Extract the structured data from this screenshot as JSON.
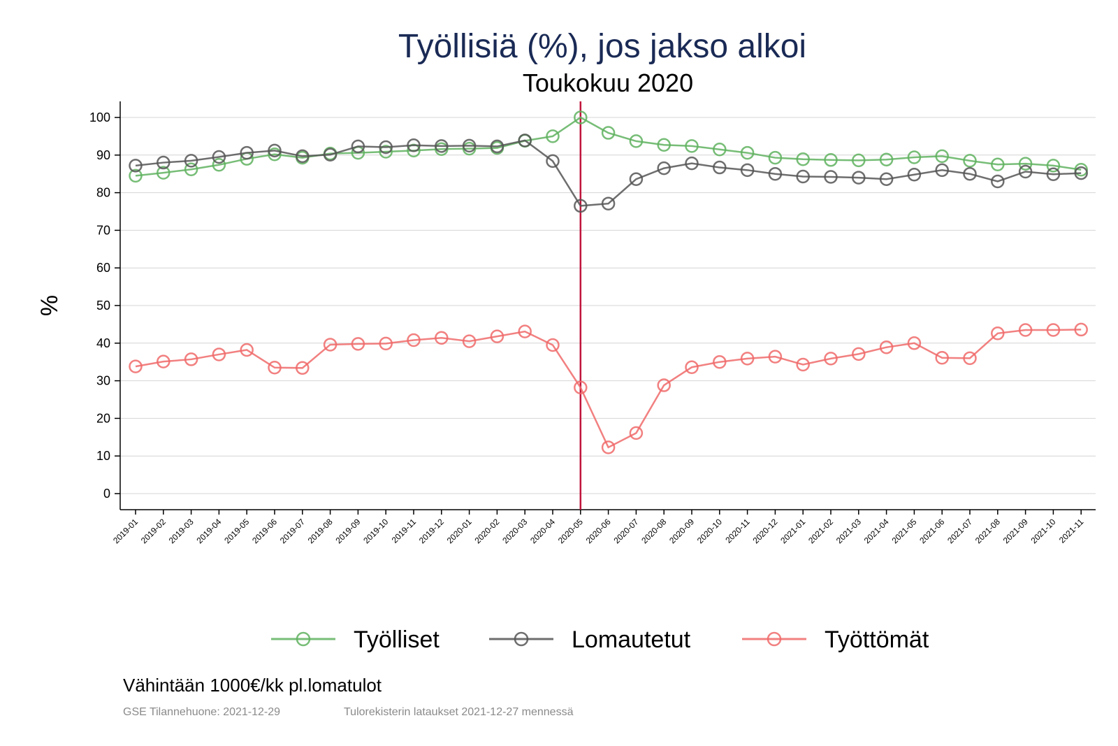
{
  "chart_data": {
    "type": "line",
    "title": "Työllisiä (%), jos jakso alkoi",
    "subtitle": "Toukokuu 2020",
    "ylabel": "%",
    "xlabel": "",
    "ylim": [
      0,
      100
    ],
    "yticks": [
      0,
      10,
      20,
      30,
      40,
      50,
      60,
      70,
      80,
      90,
      100
    ],
    "grid": true,
    "legend_position": "bottom",
    "reference_line": {
      "x": "2020-05",
      "color": "#c0143c"
    },
    "categories": [
      "2019-01",
      "2019-02",
      "2019-03",
      "2019-04",
      "2019-05",
      "2019-06",
      "2019-07",
      "2019-08",
      "2019-09",
      "2019-10",
      "2019-11",
      "2019-12",
      "2020-01",
      "2020-02",
      "2020-03",
      "2020-04",
      "2020-05",
      "2020-06",
      "2020-07",
      "2020-08",
      "2020-09",
      "2020-10",
      "2020-11",
      "2020-12",
      "2021-01",
      "2021-02",
      "2021-03",
      "2021-04",
      "2021-05",
      "2021-06",
      "2021-07",
      "2021-08",
      "2021-09",
      "2021-10",
      "2021-11"
    ],
    "series": [
      {
        "name": "Työlliset",
        "color": "#5fb15f",
        "values": [
          84.5,
          85.3,
          86.2,
          87.4,
          89.0,
          90.2,
          89.3,
          90.4,
          90.6,
          90.9,
          91.2,
          91.6,
          91.7,
          91.9,
          93.8,
          95.0,
          100.0,
          95.9,
          93.7,
          92.7,
          92.4,
          91.5,
          90.6,
          89.3,
          88.9,
          88.7,
          88.6,
          88.8,
          89.4,
          89.7,
          88.5,
          87.5,
          87.7,
          87.2,
          86.1
        ]
      },
      {
        "name": "Lomautetut",
        "color": "#555555",
        "values": [
          87.2,
          88.0,
          88.5,
          89.5,
          90.6,
          91.2,
          89.7,
          90.1,
          92.3,
          92.1,
          92.6,
          92.4,
          92.5,
          92.3,
          93.9,
          88.4,
          76.5,
          77.1,
          83.6,
          86.5,
          87.8,
          86.7,
          86.0,
          85.0,
          84.3,
          84.2,
          84.0,
          83.6,
          84.8,
          86.0,
          85.0,
          83.0,
          85.6,
          84.9,
          85.2
        ]
      },
      {
        "name": "Työttömät",
        "color": "#f06a6a",
        "values": [
          33.8,
          35.1,
          35.7,
          37.0,
          38.2,
          33.5,
          33.4,
          39.6,
          39.8,
          39.9,
          40.8,
          41.4,
          40.5,
          41.8,
          43.1,
          39.5,
          28.2,
          12.3,
          16.1,
          28.8,
          33.6,
          35.0,
          35.9,
          36.4,
          34.3,
          35.9,
          37.1,
          38.9,
          40.0,
          36.1,
          36.0,
          42.6,
          43.5,
          43.5,
          43.6
        ]
      }
    ]
  },
  "footer": {
    "note": "Vähintään 1000€/kk pl.lomatulot",
    "source_left": "GSE Tilannehuone: 2021-12-29",
    "source_right": "Tulorekisterin lataukset 2021-12-27 mennessä"
  }
}
